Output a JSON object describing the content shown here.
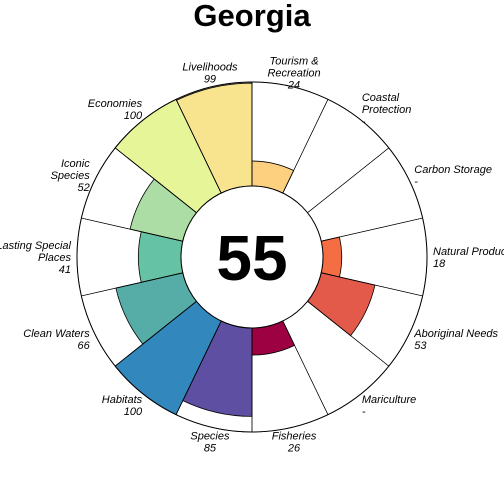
{
  "chart_data": {
    "type": "flower",
    "title": "Georgia",
    "score": "55",
    "max_value": 100,
    "petals": [
      {
        "label": [
          "Natural Products"
        ],
        "value_text": "18",
        "value": 18,
        "color": "#F46D43"
      },
      {
        "label": [
          "Aboriginal Needs"
        ],
        "value_text": "53",
        "value": 53,
        "color": "#E45A4A"
      },
      {
        "label": [
          "Mariculture"
        ],
        "value_text": "-",
        "value": null,
        "color": "#D53E4F"
      },
      {
        "label": [
          "Fisheries"
        ],
        "value_text": "26",
        "value": 26,
        "color": "#9E0142"
      },
      {
        "label": [
          "Species"
        ],
        "value_text": "85",
        "value": 85,
        "color": "#5E4FA2"
      },
      {
        "label": [
          "Habitats"
        ],
        "value_text": "100",
        "value": 100,
        "color": "#3288BD"
      },
      {
        "label": [
          "Clean Waters"
        ],
        "value_text": "66",
        "value": 66,
        "color": "#56ADA7"
      },
      {
        "label": [
          "Lasting Special",
          "Places"
        ],
        "value_text": "41",
        "value": 41,
        "color": "#66C2A5"
      },
      {
        "label": [
          "Iconic",
          "Species"
        ],
        "value_text": "52",
        "value": 52,
        "color": "#ABDDA4"
      },
      {
        "label": [
          "Economies"
        ],
        "value_text": "100",
        "value": 100,
        "color": "#E6F598"
      },
      {
        "label": [
          "Livelihoods"
        ],
        "value_text": "99",
        "value": 99,
        "color": "#F8E38F"
      },
      {
        "label": [
          "Tourism &",
          "Recreation"
        ],
        "value_text": "24",
        "value": 24,
        "color": "#FDD07F"
      },
      {
        "label": [
          "Coastal",
          "Protection"
        ],
        "value_text": "-",
        "value": null,
        "color": "#FDAE61"
      },
      {
        "label": [
          "Carbon Storage"
        ],
        "value_text": "-",
        "value": null,
        "color": "#FB8D58"
      }
    ]
  }
}
